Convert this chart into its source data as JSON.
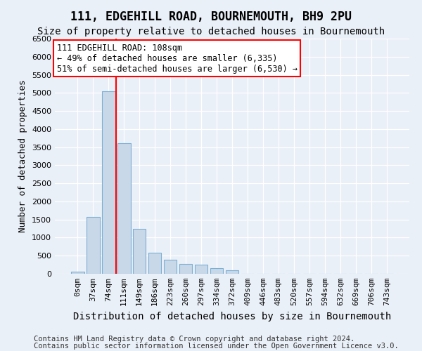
{
  "title": "111, EDGEHILL ROAD, BOURNEMOUTH, BH9 2PU",
  "subtitle": "Size of property relative to detached houses in Bournemouth",
  "xlabel": "Distribution of detached houses by size in Bournemouth",
  "ylabel": "Number of detached properties",
  "bin_labels": [
    "0sqm",
    "37sqm",
    "74sqm",
    "111sqm",
    "149sqm",
    "186sqm",
    "223sqm",
    "260sqm",
    "297sqm",
    "334sqm",
    "372sqm",
    "409sqm",
    "446sqm",
    "483sqm",
    "520sqm",
    "557sqm",
    "594sqm",
    "632sqm",
    "669sqm",
    "706sqm",
    "743sqm"
  ],
  "bar_values": [
    50,
    1580,
    5050,
    3600,
    1250,
    580,
    380,
    280,
    250,
    150,
    100,
    0,
    0,
    0,
    0,
    0,
    0,
    0,
    0,
    0,
    0
  ],
  "bar_color": "#c8d8e8",
  "bar_edge_color": "#7bafd4",
  "vline_color": "red",
  "vline_x": 2.5,
  "annotation_line1": "111 EDGEHILL ROAD: 108sqm",
  "annotation_line2": "← 49% of detached houses are smaller (6,335)",
  "annotation_line3": "51% of semi-detached houses are larger (6,530) →",
  "annotation_box_color": "white",
  "annotation_box_edge": "red",
  "ylim": [
    0,
    6500
  ],
  "yticks": [
    0,
    500,
    1000,
    1500,
    2000,
    2500,
    3000,
    3500,
    4000,
    4500,
    5000,
    5500,
    6000,
    6500
  ],
  "footer_line1": "Contains HM Land Registry data © Crown copyright and database right 2024.",
  "footer_line2": "Contains public sector information licensed under the Open Government Licence v3.0.",
  "bg_color": "#eaf0f8",
  "plot_bg_color": "#eaf0f8",
  "title_fontsize": 12,
  "subtitle_fontsize": 10,
  "xlabel_fontsize": 10,
  "ylabel_fontsize": 9,
  "tick_fontsize": 8,
  "footer_fontsize": 7.5,
  "annotation_fontsize": 8.5
}
